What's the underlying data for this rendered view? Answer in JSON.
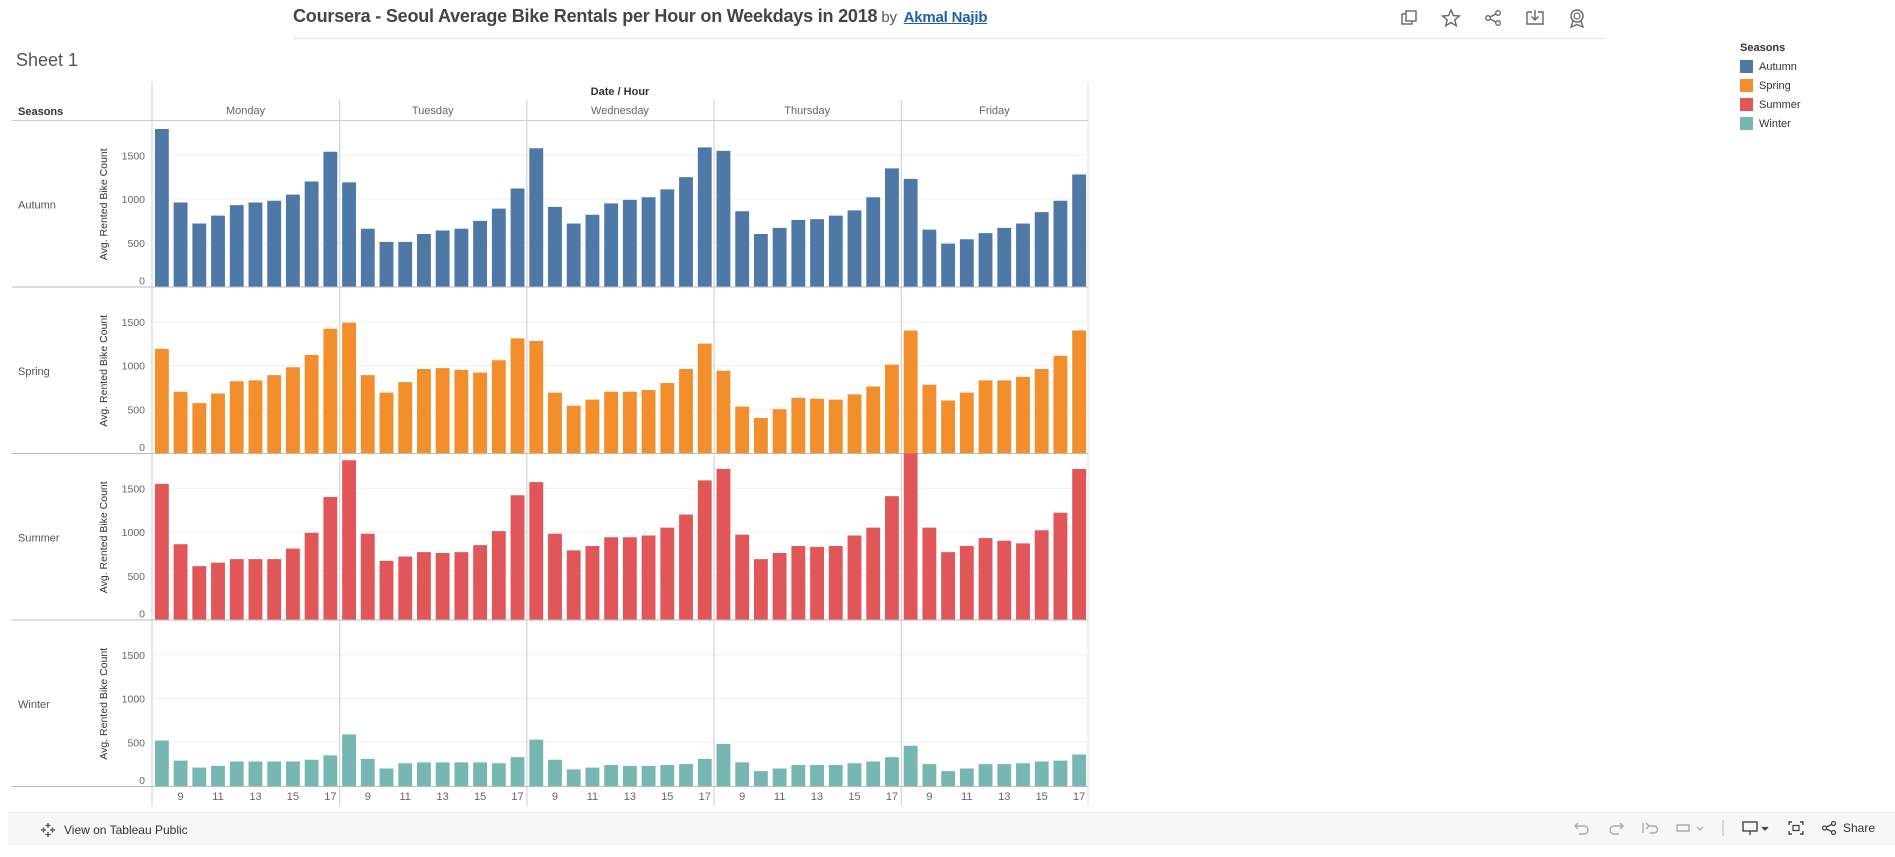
{
  "header": {
    "title": "Coursera - Seoul Average Bike Rentals per Hour on Weekdays in 2018",
    "by": "by",
    "author": "Akmal Najib",
    "icons": [
      "duplicate-icon",
      "star-icon",
      "share-nodes-icon",
      "download-icon",
      "badge-icon"
    ]
  },
  "sheet_title": "Sheet 1",
  "legend": {
    "title": "Seasons",
    "items": [
      {
        "label": "Autumn",
        "color": "#4e79a7"
      },
      {
        "label": "Spring",
        "color": "#f28e2b"
      },
      {
        "label": "Summer",
        "color": "#e15759"
      },
      {
        "label": "Winter",
        "color": "#76b7b2"
      }
    ]
  },
  "footer": {
    "view_label": "View on Tableau Public",
    "share_label": "Share"
  },
  "chart_data": {
    "type": "bar",
    "column_header": "Date / Hour",
    "row_header": "Seasons",
    "ylabel": "Avg. Rented Bike Count",
    "ylim": [
      0,
      1800
    ],
    "yticks": [
      0,
      500,
      1000,
      1500
    ],
    "days": [
      "Monday",
      "Tuesday",
      "Wednesday",
      "Thursday",
      "Friday"
    ],
    "hours": [
      8,
      9,
      10,
      11,
      12,
      13,
      14,
      15,
      16,
      17
    ],
    "xtick_labels": [
      "9",
      "11",
      "13",
      "15",
      "17"
    ],
    "series": [
      {
        "name": "Autumn",
        "color": "#4e79a7",
        "values": [
          [
            1800,
            960,
            720,
            810,
            930,
            960,
            980,
            1050,
            1200,
            1540
          ],
          [
            1190,
            660,
            510,
            510,
            600,
            640,
            660,
            750,
            890,
            1120
          ],
          [
            1580,
            910,
            720,
            820,
            950,
            990,
            1020,
            1110,
            1250,
            1590
          ],
          [
            1550,
            860,
            600,
            670,
            760,
            770,
            810,
            870,
            1020,
            1350
          ],
          [
            1230,
            650,
            490,
            540,
            610,
            670,
            720,
            850,
            980,
            1280
          ]
        ]
      },
      {
        "name": "Spring",
        "color": "#f28e2b",
        "values": [
          [
            1190,
            700,
            570,
            680,
            820,
            830,
            890,
            980,
            1120,
            1420
          ],
          [
            1490,
            890,
            690,
            810,
            960,
            970,
            950,
            920,
            1060,
            1310
          ],
          [
            1280,
            690,
            540,
            610,
            700,
            700,
            720,
            800,
            960,
            1250
          ],
          [
            940,
            530,
            400,
            500,
            630,
            620,
            610,
            670,
            760,
            1010
          ],
          [
            1400,
            780,
            600,
            690,
            830,
            830,
            870,
            960,
            1110,
            1400
          ]
        ]
      },
      {
        "name": "Summer",
        "color": "#e15759",
        "values": [
          [
            1550,
            860,
            610,
            650,
            690,
            690,
            690,
            810,
            990,
            1400
          ],
          [
            1820,
            980,
            670,
            720,
            770,
            760,
            770,
            850,
            1010,
            1420
          ],
          [
            1570,
            980,
            790,
            840,
            940,
            940,
            960,
            1050,
            1200,
            1590
          ],
          [
            1720,
            970,
            690,
            760,
            840,
            830,
            840,
            960,
            1050,
            1410
          ],
          [
            1900,
            1050,
            770,
            840,
            930,
            900,
            870,
            1020,
            1220,
            1720
          ]
        ]
      },
      {
        "name": "Winter",
        "color": "#76b7b2",
        "values": [
          [
            520,
            290,
            210,
            230,
            280,
            280,
            280,
            280,
            300,
            350
          ],
          [
            590,
            310,
            200,
            260,
            270,
            270,
            270,
            270,
            260,
            330
          ],
          [
            530,
            300,
            190,
            210,
            240,
            230,
            230,
            240,
            250,
            310
          ],
          [
            480,
            270,
            170,
            200,
            240,
            240,
            240,
            260,
            280,
            330
          ],
          [
            460,
            250,
            170,
            200,
            250,
            250,
            260,
            280,
            290,
            360
          ]
        ]
      }
    ]
  }
}
